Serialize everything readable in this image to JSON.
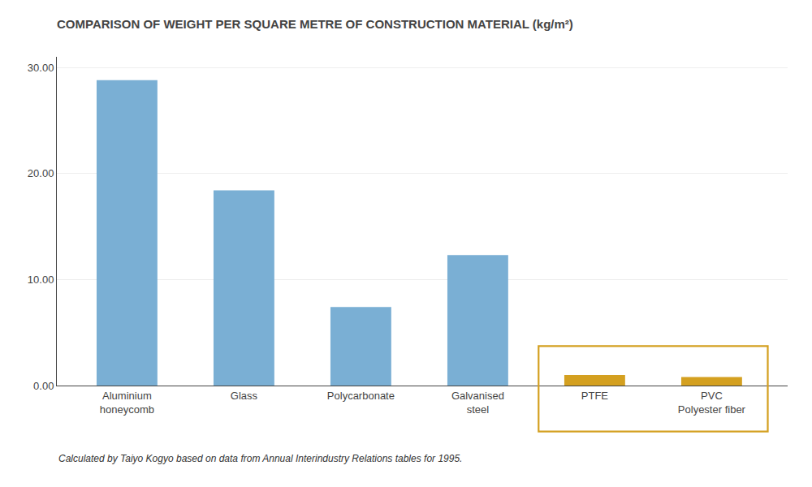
{
  "chart_data": {
    "type": "bar",
    "title": "COMPARISON OF WEIGHT PER SQUARE METRE OF CONSTRUCTION MATERIAL (kg/m²)",
    "categories": [
      "Aluminium\nhoneycomb",
      "Glass",
      "Polycarbonate",
      "Galvanised\nsteel",
      "PTFE",
      "PVC\nPolyester fiber"
    ],
    "values": [
      28.8,
      18.4,
      7.4,
      12.3,
      1.0,
      0.8
    ],
    "colors": [
      "#7aafd4",
      "#7aafd4",
      "#7aafd4",
      "#7aafd4",
      "#d4a020",
      "#d4a020"
    ],
    "ylim": [
      0,
      31
    ],
    "yticks": [
      {
        "value": 0,
        "label": "0.00"
      },
      {
        "value": 10,
        "label": "10.00"
      },
      {
        "value": 20,
        "label": "20.00"
      },
      {
        "value": 30,
        "label": "30.00"
      }
    ],
    "grid": true,
    "annotations": [
      "Calculated by Taiyo Kogyo based on data from Annual Interindustry Relations tables for 1995."
    ]
  }
}
